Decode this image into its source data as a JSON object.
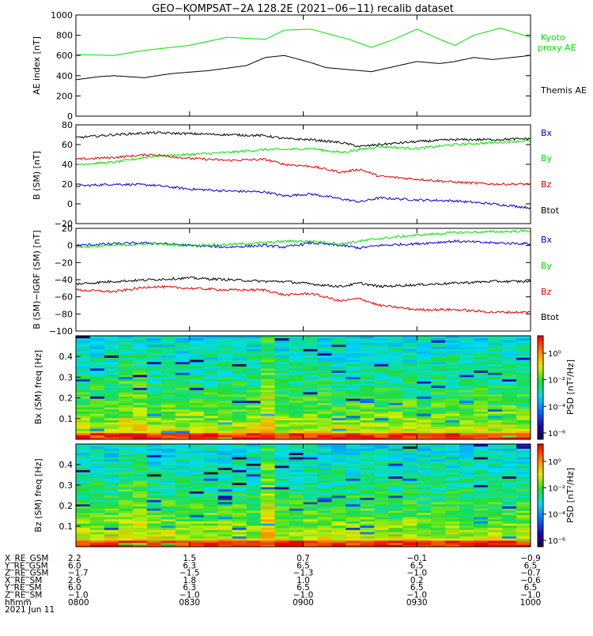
{
  "title": "GEO−KOMPSAT−2A 128.2E (2021−06−11) recalib dataset",
  "colors": {
    "black": "#000000",
    "green": "#00e000",
    "red": "#dd0000",
    "blue": "#0000cc"
  },
  "chart_data": [
    {
      "type": "line",
      "ylabel": "AE index [nT]",
      "ylim": [
        0,
        1000
      ],
      "yticks": [
        "0",
        "200",
        "400",
        "600",
        "800",
        "1000"
      ],
      "xlim": [
        0,
        120
      ],
      "series": [
        {
          "name": "Kyoto proxy AE",
          "color": "green",
          "x": [
            0,
            10,
            18,
            30,
            40,
            50,
            55,
            62,
            72,
            78,
            84,
            90,
            96,
            100,
            105,
            112,
            120
          ],
          "y": [
            610,
            600,
            650,
            700,
            780,
            760,
            850,
            860,
            760,
            680,
            760,
            860,
            760,
            700,
            800,
            870,
            780
          ]
        },
        {
          "name": "Themis AE",
          "color": "black",
          "x": [
            0,
            6,
            10,
            18,
            25,
            35,
            45,
            50,
            55,
            62,
            66,
            72,
            78,
            84,
            90,
            96,
            100,
            105,
            110,
            115,
            120
          ],
          "y": [
            360,
            390,
            400,
            380,
            420,
            450,
            500,
            580,
            600,
            530,
            480,
            460,
            440,
            490,
            540,
            520,
            540,
            580,
            560,
            580,
            600
          ]
        }
      ]
    },
    {
      "type": "line",
      "ylabel": "B (SM) [nT]",
      "ylim": [
        -20,
        80
      ],
      "yticks": [
        "−20",
        "0",
        "20",
        "40",
        "60",
        "80"
      ],
      "xlim": [
        0,
        120
      ],
      "series": [
        {
          "name": "Bx",
          "color": "blue",
          "x": [
            0,
            10,
            20,
            30,
            40,
            50,
            55,
            62,
            70,
            75,
            80,
            90,
            100,
            110,
            120
          ],
          "y": [
            18,
            20,
            19,
            15,
            13,
            12,
            8,
            10,
            5,
            2,
            6,
            4,
            3,
            0,
            -4
          ]
        },
        {
          "name": "By",
          "color": "green",
          "x": [
            0,
            10,
            20,
            30,
            40,
            50,
            55,
            62,
            70,
            75,
            80,
            90,
            100,
            110,
            120
          ],
          "y": [
            40,
            42,
            48,
            50,
            52,
            55,
            55,
            56,
            52,
            55,
            58,
            56,
            60,
            62,
            64
          ]
        },
        {
          "name": "Bz",
          "color": "red",
          "x": [
            0,
            10,
            20,
            30,
            40,
            50,
            55,
            62,
            70,
            75,
            80,
            90,
            100,
            110,
            120
          ],
          "y": [
            45,
            47,
            50,
            46,
            44,
            45,
            40,
            38,
            32,
            35,
            28,
            25,
            22,
            20,
            20
          ]
        },
        {
          "name": "Btot",
          "color": "black",
          "x": [
            0,
            10,
            20,
            30,
            40,
            50,
            55,
            62,
            70,
            75,
            80,
            90,
            100,
            110,
            120
          ],
          "y": [
            67,
            70,
            72,
            71,
            70,
            69,
            66,
            65,
            62,
            58,
            60,
            63,
            65,
            65,
            66
          ]
        }
      ]
    },
    {
      "type": "line",
      "ylabel": "B (SM)−IGRF (SM) [nT]",
      "ylim": [
        -100,
        20
      ],
      "yticks": [
        "−100",
        "−80",
        "−60",
        "−40",
        "−20",
        "0",
        "20"
      ],
      "xlim": [
        0,
        120
      ],
      "series": [
        {
          "name": "Bx",
          "color": "blue",
          "x": [
            0,
            10,
            20,
            30,
            40,
            50,
            55,
            62,
            70,
            75,
            80,
            90,
            100,
            110,
            120
          ],
          "y": [
            0,
            2,
            3,
            0,
            -2,
            0,
            -2,
            3,
            0,
            -3,
            0,
            2,
            5,
            3,
            2
          ]
        },
        {
          "name": "By",
          "color": "green",
          "x": [
            0,
            10,
            20,
            30,
            40,
            50,
            55,
            62,
            70,
            75,
            80,
            90,
            100,
            110,
            120
          ],
          "y": [
            -2,
            0,
            2,
            0,
            1,
            3,
            5,
            5,
            2,
            5,
            8,
            12,
            15,
            16,
            17
          ]
        },
        {
          "name": "Bz",
          "color": "red",
          "x": [
            0,
            10,
            20,
            30,
            40,
            50,
            55,
            62,
            70,
            75,
            80,
            90,
            100,
            110,
            120
          ],
          "y": [
            -52,
            -54,
            -48,
            -50,
            -52,
            -52,
            -58,
            -56,
            -65,
            -62,
            -70,
            -75,
            -75,
            -78,
            -78
          ]
        },
        {
          "name": "Btot",
          "color": "black",
          "x": [
            0,
            10,
            20,
            30,
            40,
            50,
            55,
            62,
            70,
            75,
            80,
            90,
            100,
            110,
            120
          ],
          "y": [
            -45,
            -42,
            -40,
            -38,
            -40,
            -42,
            -42,
            -45,
            -48,
            -44,
            -48,
            -46,
            -44,
            -42,
            -42
          ]
        }
      ]
    },
    {
      "type": "heatmap",
      "ylabel": "Bx (SM) freq [Hz]",
      "ylim": [
        0,
        0.5
      ],
      "yticks": [
        "0.1",
        "0.2",
        "0.3",
        "0.4"
      ],
      "colorbar": {
        "label": "PSD [nT²/Hz]",
        "ticks": [
          "10⁰",
          "10⁻²",
          "10⁻⁴",
          "10⁻⁶"
        ]
      }
    },
    {
      "type": "heatmap",
      "ylabel": "Bz (SM) freq [Hz]",
      "ylim": [
        0,
        0.5
      ],
      "yticks": [
        "0.1",
        "0.2",
        "0.3",
        "0.4"
      ],
      "colorbar": {
        "label": "PSD [nT²/Hz]",
        "ticks": [
          "10⁰",
          "10⁻²",
          "10⁻⁴",
          "10⁻⁶"
        ]
      }
    }
  ],
  "legends": {
    "panel1": [
      "Kyoto",
      "proxy AE",
      "Themis AE"
    ],
    "panel2": [
      "Bx",
      "By",
      "Bz",
      "Btot"
    ],
    "panel3": [
      "Bx",
      "By",
      "Bz",
      "Btot"
    ]
  },
  "ephemeris": {
    "labels": [
      "X_RE_GSM",
      "Y_RE_GSM",
      "Z_RE_GSM",
      "X_RE_SM",
      "Y_RE_SM",
      "Z_RE_SM",
      "hhmm",
      "2021 Jun 11"
    ],
    "columns": [
      [
        "2.2",
        "6.0",
        "−1.7",
        "2.6",
        "6.0",
        "−1.0",
        "0800"
      ],
      [
        "1.5",
        "6.3",
        "−1.5",
        "1.8",
        "6.3",
        "−1.0",
        "0830"
      ],
      [
        "0.7",
        "6.5",
        "−1.3",
        "1.0",
        "6.5",
        "−1.0",
        "0900"
      ],
      [
        "−0.1",
        "6.5",
        "−1.0",
        "0.2",
        "6.5",
        "−1.0",
        "0930"
      ],
      [
        "−0.9",
        "6.5",
        "−0.7",
        "−0.6",
        "6.5",
        "−1.0",
        "1000"
      ]
    ]
  }
}
